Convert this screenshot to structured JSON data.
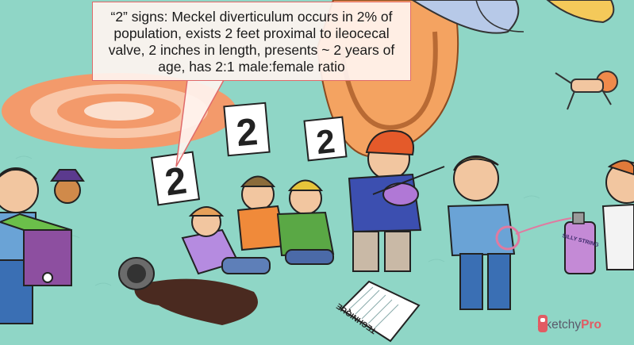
{
  "callout": {
    "text": "“2” signs: Meckel diverticulum occurs in 2% of population, exists 2 feet proximal to ileocecal valve, 2 inches in length, presents ~ 2 years of age, has 2:1 male:female ratio"
  },
  "signs": [
    "2",
    "2",
    "2"
  ],
  "notebook": {
    "label": "TECHNIQUE"
  },
  "spray_can": {
    "label": "SILLY STRING"
  },
  "brand": {
    "name_a": "Sketchy",
    "name_b": "Pro",
    "icon": "lips-icon"
  },
  "colors": {
    "background": "#8fd6c6",
    "callout_border": "#e06a6a",
    "brand_accent": "#e25b63",
    "tent_orange": "#f4a361"
  }
}
